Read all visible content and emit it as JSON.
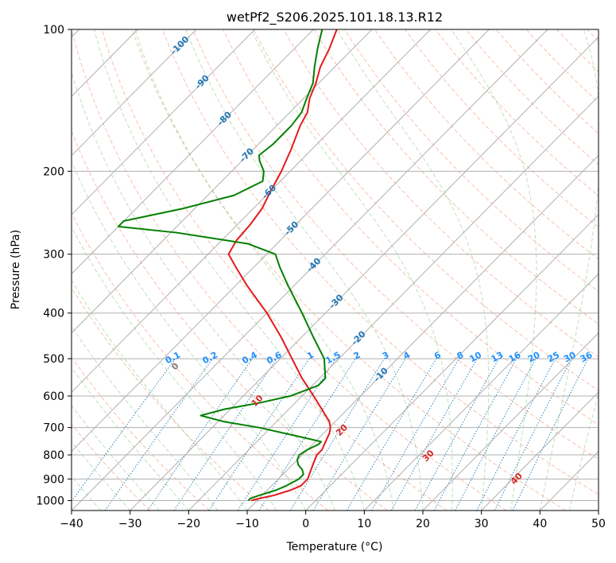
{
  "chart_data": {
    "type": "line",
    "title": "wetPf2_S206.2025.101.18.13.R12",
    "xlabel": "Temperature (°C)",
    "ylabel": "Pressure (hPa)",
    "xlim": [
      -40,
      50
    ],
    "ylim": [
      1050,
      100
    ],
    "y_scale": "log",
    "skew": true,
    "grid": true,
    "x_ticks": [
      -40,
      -30,
      -20,
      -10,
      0,
      10,
      20,
      30,
      40,
      50
    ],
    "y_ticks": [
      100,
      200,
      300,
      400,
      500,
      600,
      700,
      800,
      900,
      1000
    ],
    "series": [
      {
        "role": "temperature",
        "color": "#e41a1c",
        "points": [
          {
            "p": 1000,
            "t": -11.0
          },
          {
            "p": 990,
            "t": -10.0
          },
          {
            "p": 975,
            "t": -8.0
          },
          {
            "p": 950,
            "t": -6.0
          },
          {
            "p": 930,
            "t": -5.0
          },
          {
            "p": 900,
            "t": -5.0
          },
          {
            "p": 880,
            "t": -5.5
          },
          {
            "p": 860,
            "t": -6.0
          },
          {
            "p": 840,
            "t": -6.5
          },
          {
            "p": 820,
            "t": -7.0
          },
          {
            "p": 800,
            "t": -7.5
          },
          {
            "p": 780,
            "t": -7.5
          },
          {
            "p": 760,
            "t": -8.0
          },
          {
            "p": 740,
            "t": -8.5
          },
          {
            "p": 720,
            "t": -9.0
          },
          {
            "p": 700,
            "t": -9.8
          },
          {
            "p": 680,
            "t": -11.0
          },
          {
            "p": 650,
            "t": -13.5
          },
          {
            "p": 600,
            "t": -18.0
          },
          {
            "p": 550,
            "t": -23.0
          },
          {
            "p": 500,
            "t": -28.0
          },
          {
            "p": 450,
            "t": -33.5
          },
          {
            "p": 400,
            "t": -40.0
          },
          {
            "p": 350,
            "t": -48.0
          },
          {
            "p": 320,
            "t": -53.0
          },
          {
            "p": 300,
            "t": -56.5
          },
          {
            "p": 290,
            "t": -57.0
          },
          {
            "p": 280,
            "t": -57.5
          },
          {
            "p": 260,
            "t": -57.8
          },
          {
            "p": 240,
            "t": -58.5
          },
          {
            "p": 220,
            "t": -60.0
          },
          {
            "p": 200,
            "t": -61.5
          },
          {
            "p": 180,
            "t": -63.5
          },
          {
            "p": 160,
            "t": -66.0
          },
          {
            "p": 150,
            "t": -67.0
          },
          {
            "p": 140,
            "t": -69.0
          },
          {
            "p": 130,
            "t": -70.5
          },
          {
            "p": 120,
            "t": -72.5
          },
          {
            "p": 110,
            "t": -74.0
          },
          {
            "p": 100,
            "t": -76.0
          }
        ]
      },
      {
        "role": "dewpoint",
        "color": "#008000",
        "points": [
          {
            "p": 1000,
            "t": -11.5
          },
          {
            "p": 990,
            "t": -11.5
          },
          {
            "p": 975,
            "t": -10.5
          },
          {
            "p": 950,
            "t": -8.5
          },
          {
            "p": 930,
            "t": -7.5
          },
          {
            "p": 900,
            "t": -6.5
          },
          {
            "p": 880,
            "t": -6.5
          },
          {
            "p": 860,
            "t": -7.5
          },
          {
            "p": 840,
            "t": -9.0
          },
          {
            "p": 820,
            "t": -10.0
          },
          {
            "p": 800,
            "t": -10.5
          },
          {
            "p": 780,
            "t": -10.0
          },
          {
            "p": 760,
            "t": -9.0
          },
          {
            "p": 750,
            "t": -9.0
          },
          {
            "p": 730,
            "t": -14.0
          },
          {
            "p": 700,
            "t": -22.0
          },
          {
            "p": 680,
            "t": -29.0
          },
          {
            "p": 660,
            "t": -34.0
          },
          {
            "p": 640,
            "t": -31.0
          },
          {
            "p": 620,
            "t": -26.0
          },
          {
            "p": 600,
            "t": -22.0
          },
          {
            "p": 570,
            "t": -19.0
          },
          {
            "p": 550,
            "t": -19.0
          },
          {
            "p": 500,
            "t": -22.5
          },
          {
            "p": 450,
            "t": -28.0
          },
          {
            "p": 400,
            "t": -34.0
          },
          {
            "p": 350,
            "t": -41.0
          },
          {
            "p": 320,
            "t": -45.5
          },
          {
            "p": 300,
            "t": -48.5
          },
          {
            "p": 285,
            "t": -55.0
          },
          {
            "p": 270,
            "t": -69.0
          },
          {
            "p": 262,
            "t": -80.0
          },
          {
            "p": 255,
            "t": -80.0
          },
          {
            "p": 240,
            "t": -72.0
          },
          {
            "p": 225,
            "t": -65.5
          },
          {
            "p": 210,
            "t": -63.0
          },
          {
            "p": 200,
            "t": -64.5
          },
          {
            "p": 190,
            "t": -67.0
          },
          {
            "p": 185,
            "t": -68.0
          },
          {
            "p": 175,
            "t": -67.5
          },
          {
            "p": 160,
            "t": -67.5
          },
          {
            "p": 150,
            "t": -68.0
          },
          {
            "p": 140,
            "t": -69.5
          },
          {
            "p": 130,
            "t": -71.0
          },
          {
            "p": 120,
            "t": -73.5
          },
          {
            "p": 110,
            "t": -76.0
          },
          {
            "p": 100,
            "t": -78.5
          }
        ]
      }
    ],
    "isotherm_labels": [
      "-100",
      "-90",
      "-80",
      "-70",
      "-60",
      "-50",
      "-40",
      "-30",
      "-20",
      "-10"
    ],
    "mixing_ratio_labels": [
      "0.1",
      "0.2",
      "0.4",
      "0.6",
      "1",
      "1.5",
      "2",
      "3",
      "4",
      "6",
      "8",
      "10",
      "13",
      "16",
      "20",
      "25",
      "30",
      "36"
    ],
    "dry_adiabat_labels": [
      "0",
      "10",
      "20",
      "30",
      "40"
    ],
    "colors": {
      "isotherm_label": "#1f77b4",
      "mixing_ratio": "#1f77b4",
      "mixing_label": "#1e90ff",
      "dry_adiabat": "#f08c6c",
      "moist_adiabat": "#7cc47c",
      "dry_label_zero": "#808080",
      "dry_label": "#d62728",
      "grid": "#b0b0b0"
    }
  }
}
